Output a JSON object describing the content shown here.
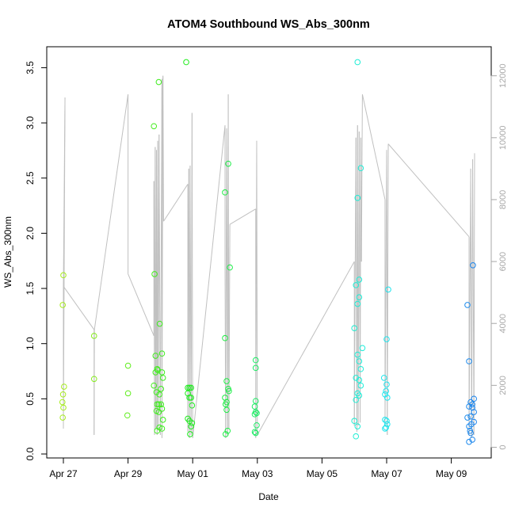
{
  "chart_data": {
    "type": "scatter",
    "title": "ATOM4 Southbound WS_Abs_300nm",
    "xlabel": "Date",
    "ylabel": "WS_Abs_300nm",
    "x_ticks": [
      "Apr 27",
      "Apr 29",
      "May 01",
      "May 03",
      "May 05",
      "May 07",
      "May 09"
    ],
    "x_range_days": [
      26.8,
      40.25
    ],
    "ylim": [
      0,
      3.6
    ],
    "y_ticks": [
      "0.0",
      "0.5",
      "1.0",
      "1.5",
      "2.0",
      "2.5",
      "3.0",
      "3.5"
    ],
    "y2_ticks": [
      "0",
      "2000",
      "4000",
      "6000",
      "8000",
      "10000",
      "12000"
    ],
    "y2lim": [
      0,
      12300
    ],
    "grid": false,
    "x_units": "days since Apr 1",
    "points": [
      [
        27.0,
        1.62
      ],
      [
        26.98,
        1.35
      ],
      [
        27.02,
        0.61
      ],
      [
        26.99,
        0.54
      ],
      [
        26.97,
        0.47
      ],
      [
        27.0,
        0.42
      ],
      [
        26.98,
        0.33
      ],
      [
        27.95,
        1.07
      ],
      [
        27.95,
        0.68
      ],
      [
        29.0,
        0.8
      ],
      [
        29.0,
        0.55
      ],
      [
        28.98,
        0.35
      ],
      [
        29.8,
        2.97
      ],
      [
        29.95,
        3.37
      ],
      [
        29.82,
        1.63
      ],
      [
        29.98,
        1.18
      ],
      [
        29.85,
        0.89
      ],
      [
        29.9,
        0.77
      ],
      [
        29.92,
        0.76
      ],
      [
        29.85,
        0.74
      ],
      [
        29.8,
        0.62
      ],
      [
        29.88,
        0.56
      ],
      [
        29.97,
        0.54
      ],
      [
        29.9,
        0.45
      ],
      [
        29.95,
        0.45
      ],
      [
        30.02,
        0.45
      ],
      [
        29.88,
        0.39
      ],
      [
        29.95,
        0.38
      ],
      [
        29.9,
        0.21
      ],
      [
        29.97,
        0.24
      ],
      [
        30.05,
        0.91
      ],
      [
        30.05,
        0.74
      ],
      [
        30.08,
        0.69
      ],
      [
        30.02,
        0.59
      ],
      [
        30.05,
        0.41
      ],
      [
        30.08,
        0.31
      ],
      [
        30.05,
        0.23
      ],
      [
        30.8,
        3.55
      ],
      [
        30.85,
        0.6
      ],
      [
        30.9,
        0.6
      ],
      [
        30.95,
        0.6
      ],
      [
        30.85,
        0.55
      ],
      [
        30.9,
        0.51
      ],
      [
        30.95,
        0.51
      ],
      [
        30.98,
        0.44
      ],
      [
        30.85,
        0.32
      ],
      [
        30.9,
        0.3
      ],
      [
        30.98,
        0.28
      ],
      [
        30.95,
        0.25
      ],
      [
        30.92,
        0.18
      ],
      [
        32.1,
        2.63
      ],
      [
        32.0,
        2.37
      ],
      [
        32.15,
        1.69
      ],
      [
        32.0,
        1.05
      ],
      [
        32.05,
        0.66
      ],
      [
        32.1,
        0.59
      ],
      [
        32.12,
        0.57
      ],
      [
        32.0,
        0.51
      ],
      [
        32.05,
        0.47
      ],
      [
        32.02,
        0.45
      ],
      [
        32.05,
        0.4
      ],
      [
        32.08,
        0.21
      ],
      [
        32.02,
        0.18
      ],
      [
        32.95,
        0.85
      ],
      [
        32.95,
        0.78
      ],
      [
        32.95,
        0.48
      ],
      [
        32.92,
        0.43
      ],
      [
        32.95,
        0.38
      ],
      [
        32.98,
        0.37
      ],
      [
        32.92,
        0.36
      ],
      [
        32.98,
        0.26
      ],
      [
        32.92,
        0.2
      ],
      [
        32.95,
        0.19
      ],
      [
        36.1,
        3.55
      ],
      [
        36.2,
        2.59
      ],
      [
        36.1,
        2.32
      ],
      [
        36.15,
        1.58
      ],
      [
        36.05,
        1.53
      ],
      [
        36.15,
        1.42
      ],
      [
        36.1,
        1.36
      ],
      [
        36.0,
        1.14
      ],
      [
        36.25,
        0.96
      ],
      [
        36.1,
        0.9
      ],
      [
        36.15,
        0.84
      ],
      [
        36.2,
        0.77
      ],
      [
        36.05,
        0.69
      ],
      [
        36.15,
        0.67
      ],
      [
        36.2,
        0.62
      ],
      [
        36.1,
        0.55
      ],
      [
        36.15,
        0.53
      ],
      [
        36.05,
        0.49
      ],
      [
        36.0,
        0.3
      ],
      [
        36.1,
        0.25
      ],
      [
        36.05,
        0.16
      ],
      [
        37.05,
        1.49
      ],
      [
        37.0,
        1.04
      ],
      [
        36.92,
        0.69
      ],
      [
        37.0,
        0.63
      ],
      [
        36.98,
        0.57
      ],
      [
        36.95,
        0.54
      ],
      [
        37.02,
        0.51
      ],
      [
        36.95,
        0.31
      ],
      [
        37.0,
        0.3
      ],
      [
        37.02,
        0.27
      ],
      [
        36.98,
        0.24
      ],
      [
        36.95,
        0.23
      ],
      [
        39.67,
        1.71
      ],
      [
        39.5,
        1.35
      ],
      [
        39.55,
        0.84
      ],
      [
        39.7,
        0.5
      ],
      [
        39.6,
        0.47
      ],
      [
        39.65,
        0.45
      ],
      [
        39.55,
        0.43
      ],
      [
        39.65,
        0.42
      ],
      [
        39.7,
        0.38
      ],
      [
        39.6,
        0.34
      ],
      [
        39.5,
        0.33
      ],
      [
        39.7,
        0.29
      ],
      [
        39.62,
        0.27
      ],
      [
        39.55,
        0.25
      ],
      [
        39.58,
        0.21
      ],
      [
        39.6,
        0.19
      ],
      [
        39.65,
        0.13
      ],
      [
        39.55,
        0.11
      ]
    ],
    "secondary_line": [
      [
        27.0,
        5300
      ],
      [
        27.0,
        600
      ],
      [
        27.05,
        11300
      ],
      [
        27.0,
        5200
      ],
      [
        27.95,
        3800
      ],
      [
        27.95,
        400
      ],
      [
        27.96,
        3800
      ],
      [
        29.0,
        11400
      ],
      [
        29.0,
        5600
      ],
      [
        29.8,
        3600
      ],
      [
        29.8,
        8600
      ],
      [
        29.82,
        400
      ],
      [
        29.84,
        9700
      ],
      [
        29.86,
        600
      ],
      [
        29.88,
        9600
      ],
      [
        29.9,
        400
      ],
      [
        29.92,
        9900
      ],
      [
        29.94,
        600
      ],
      [
        29.96,
        10100
      ],
      [
        30.0,
        400
      ],
      [
        30.05,
        11900
      ],
      [
        30.05,
        7500
      ],
      [
        30.05,
        11600
      ],
      [
        30.05,
        300
      ],
      [
        30.08,
        12000
      ],
      [
        30.1,
        7300
      ],
      [
        30.85,
        8500
      ],
      [
        30.85,
        500
      ],
      [
        30.88,
        9000
      ],
      [
        30.9,
        300
      ],
      [
        30.92,
        9100
      ],
      [
        30.95,
        400
      ],
      [
        30.98,
        10800
      ],
      [
        31.0,
        300
      ],
      [
        32.0,
        10400
      ],
      [
        32.0,
        6000
      ],
      [
        32.02,
        300
      ],
      [
        32.05,
        10300
      ],
      [
        32.08,
        400
      ],
      [
        32.1,
        11400
      ],
      [
        32.12,
        600
      ],
      [
        32.15,
        7200
      ],
      [
        32.95,
        7700
      ],
      [
        32.95,
        300
      ],
      [
        32.98,
        9900
      ],
      [
        33.0,
        400
      ],
      [
        36.0,
        6000
      ],
      [
        36.0,
        700
      ],
      [
        36.05,
        10000
      ],
      [
        36.08,
        500
      ],
      [
        36.1,
        10400
      ],
      [
        36.12,
        700
      ],
      [
        36.15,
        10200
      ],
      [
        36.18,
        800
      ],
      [
        36.2,
        10000
      ],
      [
        36.22,
        6000
      ],
      [
        36.25,
        11400
      ],
      [
        36.95,
        8000
      ],
      [
        36.95,
        700
      ],
      [
        37.0,
        9600
      ],
      [
        37.02,
        400
      ],
      [
        37.05,
        9800
      ],
      [
        39.55,
        6800
      ],
      [
        39.55,
        400
      ],
      [
        39.6,
        9000
      ],
      [
        39.63,
        300
      ],
      [
        39.66,
        9300
      ],
      [
        39.7,
        400
      ],
      [
        39.72,
        9500
      ]
    ]
  }
}
